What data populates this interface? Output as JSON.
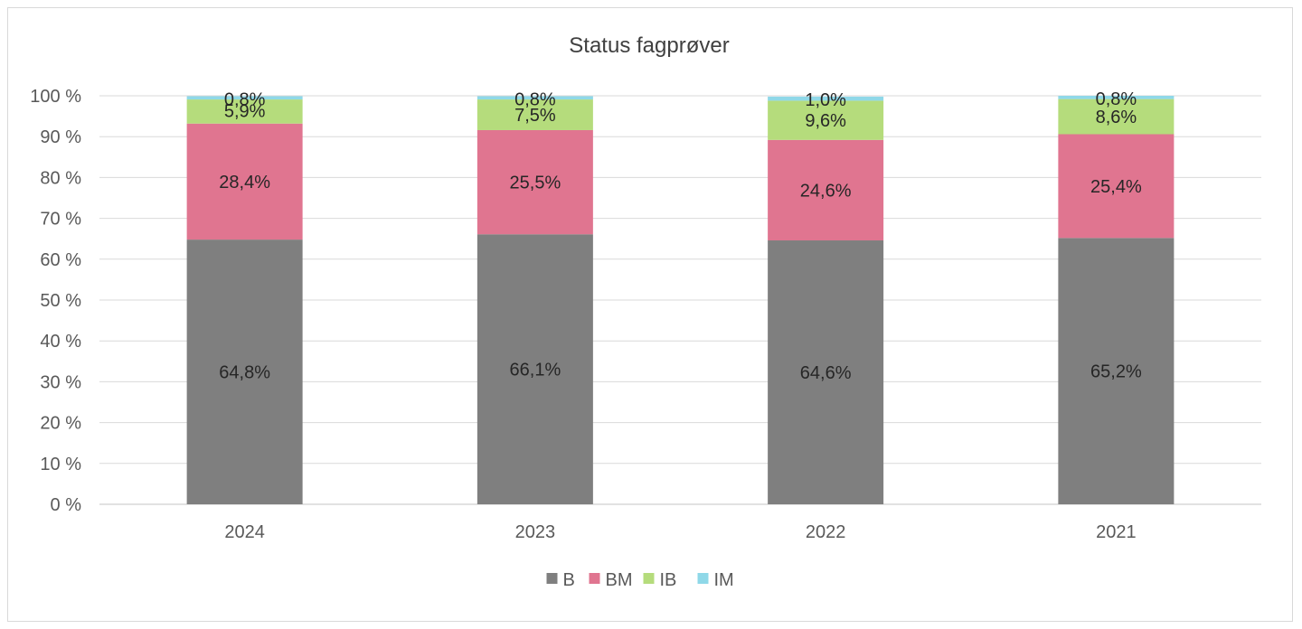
{
  "chart_data": {
    "type": "bar",
    "stacked": true,
    "title": "Status fagprøver",
    "categories": [
      "2024",
      "2023",
      "2022",
      "2021"
    ],
    "ylim": [
      0,
      100
    ],
    "yticks": [
      "0 %",
      "10 %",
      "20 %",
      "30 %",
      "40 %",
      "50 %",
      "60 %",
      "70 %",
      "80 %",
      "90 %",
      "100 %"
    ],
    "grid": true,
    "legend_position": "bottom",
    "series": [
      {
        "name": "B",
        "color": "#7f7f7f",
        "values": [
          64.8,
          66.1,
          64.6,
          65.2
        ],
        "labels": [
          "64,8%",
          "66,1%",
          "64,6%",
          "65,2%"
        ]
      },
      {
        "name": "BM",
        "color": "#e07590",
        "values": [
          28.4,
          25.5,
          24.6,
          25.4
        ],
        "labels": [
          "28,4%",
          "25,5%",
          "24,6%",
          "25,4%"
        ]
      },
      {
        "name": "IB",
        "color": "#b5dc7c",
        "values": [
          5.9,
          7.5,
          9.6,
          8.6
        ],
        "labels": [
          "5,9%",
          "7,5%",
          "9,6%",
          "8,6%"
        ]
      },
      {
        "name": "IM",
        "color": "#8fd8e8",
        "values": [
          0.8,
          0.8,
          1.0,
          0.8
        ],
        "labels": [
          "0,8%",
          "0,8%",
          "1,0%",
          "0,8%"
        ]
      }
    ]
  }
}
